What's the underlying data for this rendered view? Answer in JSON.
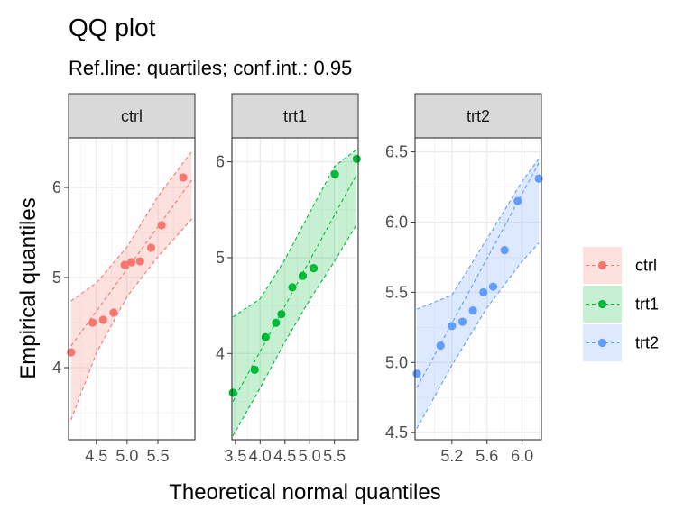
{
  "chart_data": {
    "type": "scatter",
    "title": "QQ plot",
    "subtitle": "Ref.line: quartiles; conf.int.: 0.95",
    "xlabel": "Theoretical normal quantiles",
    "ylabel": "Empirical quantiles",
    "grid": true,
    "legend_position": "right",
    "facets": [
      {
        "name": "ctrl",
        "color": "#F8766D",
        "xlim": [
          4.05,
          6.1
        ],
        "ylim": [
          3.2,
          6.55
        ],
        "xticks": [
          4.5,
          5.0,
          5.5
        ],
        "xtick_labels": [
          "4.5",
          "5.0",
          "5.5"
        ],
        "yticks": [
          4,
          5,
          6
        ],
        "ytick_labels": [
          "4",
          "5",
          "6"
        ],
        "points": {
          "x": [
            4.09,
            4.44,
            4.61,
            4.78,
            4.96,
            5.07,
            5.21,
            5.39,
            5.56,
            5.91
          ],
          "y": [
            4.17,
            4.5,
            4.53,
            4.61,
            5.14,
            5.17,
            5.18,
            5.33,
            5.58,
            6.11
          ]
        },
        "ref_line": {
          "x": [
            4.09,
            6.05
          ],
          "y": [
            4.24,
            6.08
          ]
        },
        "band": {
          "x": [
            4.09,
            4.5,
            5.0,
            5.5,
            6.05
          ],
          "lower": [
            3.42,
            4.16,
            4.79,
            5.23,
            5.65
          ],
          "upper": [
            4.74,
            4.94,
            5.34,
            5.9,
            6.4
          ]
        }
      },
      {
        "name": "trt1",
        "color": "#00BA38",
        "xlim": [
          3.43,
          5.98
        ],
        "ylim": [
          3.1,
          6.25
        ],
        "xticks": [
          3.5,
          4.0,
          4.5,
          5.0,
          5.5
        ],
        "xtick_labels": [
          "3.5",
          "4.0",
          "4.5",
          "5.0",
          "5.5"
        ],
        "yticks": [
          4,
          5,
          6
        ],
        "ytick_labels": [
          "4",
          "5",
          "6"
        ],
        "points": {
          "x": [
            3.45,
            3.89,
            4.11,
            4.32,
            4.43,
            4.65,
            4.86,
            5.08,
            5.51,
            5.95
          ],
          "y": [
            3.59,
            3.83,
            4.17,
            4.32,
            4.41,
            4.69,
            4.81,
            4.89,
            5.87,
            6.03
          ]
        },
        "ref_line": {
          "x": [
            3.45,
            5.95
          ],
          "y": [
            3.5,
            5.87
          ]
        },
        "band": {
          "x": [
            3.45,
            4.0,
            4.5,
            5.0,
            5.5,
            5.95
          ],
          "lower": [
            3.14,
            3.64,
            4.12,
            4.56,
            4.96,
            5.35
          ],
          "upper": [
            4.38,
            4.57,
            4.98,
            5.47,
            5.95,
            6.13
          ]
        }
      },
      {
        "name": "trt2",
        "color": "#619CFF",
        "xlim": [
          4.78,
          6.22
        ],
        "ylim": [
          4.45,
          6.6
        ],
        "xticks": [
          5.2,
          5.6,
          6.0
        ],
        "xtick_labels": [
          "5.2",
          "5.6",
          "6.0"
        ],
        "yticks": [
          4.5,
          5.0,
          5.5,
          6.0,
          6.5
        ],
        "ytick_labels": [
          "4.5",
          "5.0",
          "5.5",
          "6.0",
          "6.5"
        ],
        "points": {
          "x": [
            4.8,
            5.07,
            5.2,
            5.32,
            5.44,
            5.56,
            5.67,
            5.8,
            5.95,
            6.19
          ],
          "y": [
            4.92,
            5.12,
            5.26,
            5.29,
            5.37,
            5.5,
            5.54,
            5.8,
            6.15,
            6.31
          ]
        },
        "ref_line": {
          "x": [
            4.8,
            6.19
          ],
          "y": [
            4.82,
            6.42
          ]
        },
        "band": {
          "x": [
            4.8,
            5.2,
            5.6,
            6.0,
            6.19
          ],
          "lower": [
            4.53,
            4.98,
            5.39,
            5.72,
            5.85
          ],
          "upper": [
            5.38,
            5.48,
            5.88,
            6.29,
            6.45
          ]
        }
      }
    ],
    "legend": [
      "ctrl",
      "trt1",
      "trt2"
    ]
  }
}
